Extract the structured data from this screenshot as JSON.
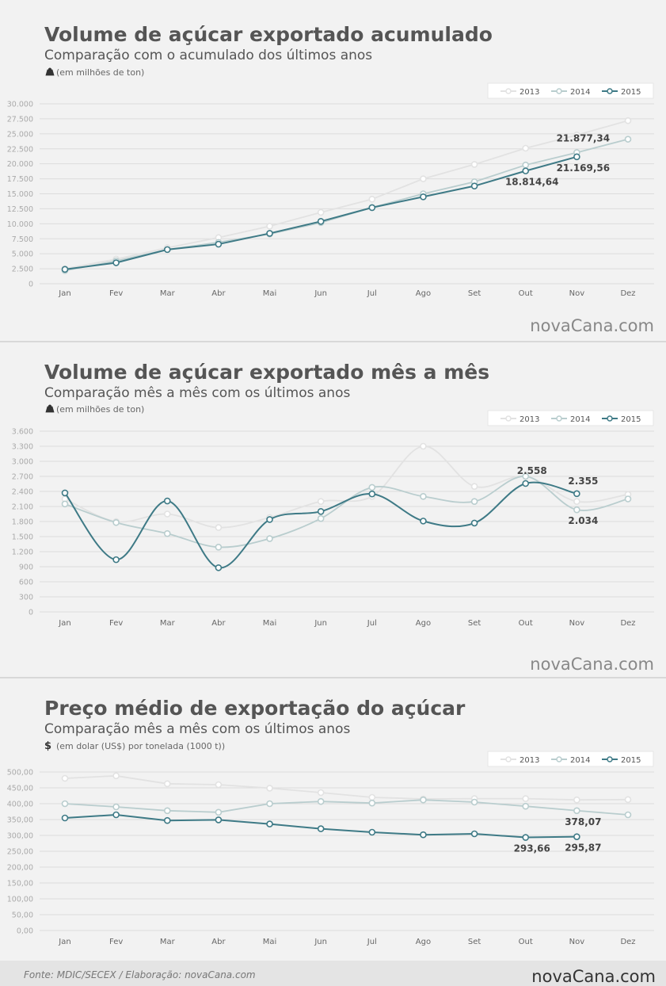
{
  "chart_data": [
    {
      "type": "line",
      "title": "Volume de açúcar exportado acumulado",
      "subtitle": "Comparação com o acumulado dos últimos anos",
      "unit": "(em milhões de ton)",
      "watermark": "novaCana.com",
      "categories": [
        "Jan",
        "Fev",
        "Mar",
        "Abr",
        "Mai",
        "Jun",
        "Jul",
        "Ago",
        "Set",
        "Out",
        "Nov",
        "Dez"
      ],
      "ylim": [
        0,
        30000
      ],
      "yticks": [
        0,
        {
          "value": 2500,
          "label": "2.500"
        },
        {
          "value": 5000,
          "label": "5.000"
        },
        {
          "value": 7500,
          "label": "7.500"
        },
        {
          "value": 10000,
          "label": "10.000"
        },
        {
          "value": 12500,
          "label": "12.500"
        },
        {
          "value": 15000,
          "label": "15.000"
        },
        {
          "value": 17500,
          "label": "17.500"
        },
        {
          "value": 20000,
          "label": "20.000"
        },
        {
          "value": 22500,
          "label": "22.500"
        },
        {
          "value": 25000,
          "label": "25.000"
        },
        {
          "value": 27500,
          "label": "27.500"
        },
        {
          "value": 30000,
          "label": "30.000"
        }
      ],
      "grid": true,
      "legend": "top-right",
      "series": [
        {
          "name": "2013",
          "color": "#e2e2e2",
          "values": [
            2500,
            4100,
            6000,
            7700,
            9600,
            11900,
            14100,
            17500,
            19900,
            22600,
            24800,
            27200
          ]
        },
        {
          "name": "2014",
          "color": "#b9cdce",
          "values": [
            2200,
            3800,
            5700,
            6900,
            8300,
            10200,
            12700,
            15000,
            17000,
            19800,
            21877.34,
            24100
          ],
          "value_labels": [
            null,
            null,
            null,
            null,
            null,
            null,
            null,
            null,
            null,
            null,
            "21.877,34",
            null
          ]
        },
        {
          "name": "2015",
          "color": "#3e7a86",
          "values": [
            2400,
            3500,
            5700,
            6600,
            8400,
            10400,
            12700,
            14500,
            16300,
            18814.64,
            21169.56,
            null
          ],
          "value_labels": [
            null,
            null,
            null,
            null,
            null,
            null,
            null,
            null,
            null,
            "18.814,64",
            "21.169,56",
            null
          ]
        }
      ]
    },
    {
      "type": "line",
      "smooth": true,
      "title": "Volume de açúcar exportado mês a mês",
      "subtitle": "Comparação mês a mês com os últimos anos",
      "unit": "(em milhões de ton)",
      "watermark": "novaCana.com",
      "categories": [
        "Jan",
        "Fev",
        "Mar",
        "Abr",
        "Mai",
        "Jun",
        "Jul",
        "Ago",
        "Set",
        "Out",
        "Nov",
        "Dez"
      ],
      "ylim": [
        0,
        3600
      ],
      "yticks": [
        0,
        300,
        600,
        900,
        {
          "value": 1200,
          "label": "1.200"
        },
        {
          "value": 1500,
          "label": "1.500"
        },
        {
          "value": 1800,
          "label": "1.800"
        },
        {
          "value": 2100,
          "label": "2.100"
        },
        {
          "value": 2400,
          "label": "2.400"
        },
        {
          "value": 2700,
          "label": "2.700"
        },
        {
          "value": 3000,
          "label": "3.000"
        },
        {
          "value": 3300,
          "label": "3.300"
        },
        {
          "value": 3600,
          "label": "3.600"
        }
      ],
      "grid": true,
      "legend": "top-right",
      "series": [
        {
          "name": "2013",
          "color": "#e2e2e2",
          "values": [
            2250,
            1800,
            1950,
            1680,
            1880,
            2200,
            2300,
            3300,
            2500,
            2700,
            2200,
            2340
          ]
        },
        {
          "name": "2014",
          "color": "#b9cdce",
          "values": [
            2150,
            1780,
            1560,
            1290,
            1460,
            1860,
            2480,
            2300,
            2200,
            2700,
            2034,
            2250
          ],
          "value_labels": [
            null,
            null,
            null,
            null,
            null,
            null,
            null,
            null,
            null,
            null,
            "2.034",
            null
          ]
        },
        {
          "name": "2015",
          "color": "#3e7a86",
          "values": [
            2370,
            1040,
            2210,
            880,
            1840,
            2000,
            2350,
            1810,
            1770,
            2558,
            2355,
            null
          ],
          "value_labels": [
            null,
            null,
            null,
            null,
            null,
            null,
            null,
            null,
            null,
            "2.558",
            "2.355",
            null
          ]
        }
      ]
    },
    {
      "type": "line",
      "title": "Preço médio de exportação do açúcar",
      "subtitle": "Comparação mês a mês com os últimos anos",
      "unit_icon": "$",
      "unit": "(em dolar (US$) por tonelada (1000 t))",
      "categories": [
        "Jan",
        "Fev",
        "Mar",
        "Abr",
        "Mai",
        "Jun",
        "Jul",
        "Ago",
        "Set",
        "Out",
        "Nov",
        "Dez"
      ],
      "ylim": [
        0,
        500
      ],
      "yticks": [
        {
          "value": 0,
          "label": "0,00"
        },
        {
          "value": 50,
          "label": "50,00"
        },
        {
          "value": 100,
          "label": "100,00"
        },
        {
          "value": 150,
          "label": "150,00"
        },
        {
          "value": 200,
          "label": "200,00"
        },
        {
          "value": 250,
          "label": "250,00"
        },
        {
          "value": 300,
          "label": "300,00"
        },
        {
          "value": 350,
          "label": "350,00"
        },
        {
          "value": 400,
          "label": "400,00"
        },
        {
          "value": 450,
          "label": "450,00"
        },
        {
          "value": 500,
          "label": "500,00"
        }
      ],
      "grid": true,
      "legend": "top-right",
      "series": [
        {
          "name": "2013",
          "color": "#e2e2e2",
          "values": [
            480,
            488,
            463,
            460,
            449,
            435,
            420,
            415,
            416,
            416,
            412,
            413
          ]
        },
        {
          "name": "2014",
          "color": "#b9cdce",
          "values": [
            400,
            390,
            378,
            373,
            400,
            407,
            402,
            412,
            405,
            392,
            378.07,
            365
          ],
          "value_labels": [
            null,
            null,
            null,
            null,
            null,
            null,
            null,
            null,
            null,
            null,
            "378,07",
            null
          ]
        },
        {
          "name": "2015",
          "color": "#3e7a86",
          "values": [
            355,
            365,
            347,
            349,
            336,
            321,
            310,
            302,
            305,
            293.66,
            295.87,
            null
          ],
          "value_labels": [
            null,
            null,
            null,
            null,
            null,
            null,
            null,
            null,
            null,
            "293,66",
            "295,87",
            null
          ]
        }
      ]
    }
  ],
  "footer": {
    "source": "Fonte: MDIC/SECEX / Elaboração:  novaCana.com",
    "logo": "novaCana.com"
  }
}
